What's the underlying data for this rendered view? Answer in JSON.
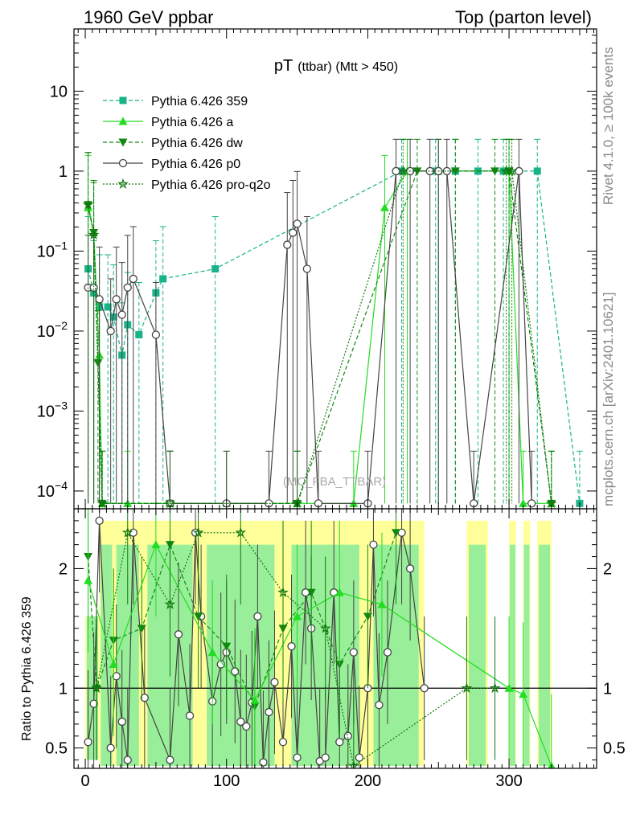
{
  "header": {
    "left": "1960 GeV ppbar",
    "right": "Top (parton level)"
  },
  "side_labels": {
    "rivet": "Rivet 4.1.0, ≥ 100k events",
    "mcplots": "mcplots.cern.ch [arXiv:2401.10621]"
  },
  "watermark": "(MC_FBA_TTBAR)",
  "colors": {
    "p359": "#19b38a",
    "a": "#22dd22",
    "dw": "#118811",
    "p0": "#444444",
    "proq2o": "#117711",
    "band_green": "#99ee99",
    "band_yellow": "#ffff99"
  },
  "chart_data": [
    {
      "type": "line",
      "title": "pT (ttbar) (Mtt > 450)",
      "title_main": "pT",
      "title_sub": "(ttbar) (Mtt > 450)",
      "xlabel": "",
      "ylabel": "",
      "yscale": "log",
      "xlim": [
        -8,
        362
      ],
      "ylim": [
        6e-05,
        60
      ],
      "x_ticks": [
        0,
        100,
        200,
        300
      ],
      "y_ticks": [
        {
          "value": 0.0001,
          "base": "10",
          "exp": "−4"
        },
        {
          "value": 0.001,
          "base": "10",
          "exp": "−3"
        },
        {
          "value": 0.01,
          "base": "10",
          "exp": "−2"
        },
        {
          "value": 0.1,
          "base": "10",
          "exp": "−1"
        },
        {
          "value": 1,
          "base": "1",
          "exp": ""
        },
        {
          "value": 10,
          "base": "10",
          "exp": ""
        }
      ],
      "legend": [
        {
          "key": "p359",
          "label": "Pythia 6.426 359",
          "marker": "square",
          "dash": "dashed"
        },
        {
          "key": "a",
          "label": "Pythia 6.426 a",
          "marker": "triangle-up",
          "dash": "solid"
        },
        {
          "key": "dw",
          "label": "Pythia 6.426 dw",
          "marker": "triangle-down",
          "dash": "dashed"
        },
        {
          "key": "p0",
          "label": "Pythia 6.426 p0",
          "marker": "circle-open",
          "dash": "solid"
        },
        {
          "key": "proq2o",
          "label": "Pythia 6.426 pro-q2o",
          "marker": "star-open",
          "dash": "dotted"
        }
      ],
      "series": [
        {
          "key": "p359",
          "points": [
            [
              2,
              0.06
            ],
            [
              6,
              0.03
            ],
            [
              10,
              0.02
            ],
            [
              16,
              0.02
            ],
            [
              20,
              0.015
            ],
            [
              26,
              0.005
            ],
            [
              30,
              0.012
            ],
            [
              38,
              0.009
            ],
            [
              50,
              0.03
            ],
            [
              55,
              0.045
            ],
            [
              92,
              0.06
            ],
            [
              224,
              1
            ],
            [
              248,
              1
            ],
            [
              262,
              1
            ],
            [
              278,
              1
            ],
            [
              296,
              1
            ],
            [
              320,
              1
            ],
            [
              350,
              7e-05
            ]
          ],
          "err_up": 2.5,
          "err_down": 7e-05
        },
        {
          "key": "a",
          "points": [
            [
              2,
              0.35
            ],
            [
              6,
              0.17
            ],
            [
              10,
              0.005
            ],
            [
              12,
              7e-05
            ],
            [
              30,
              7e-05
            ],
            [
              60,
              7e-05
            ],
            [
              100,
              7e-05
            ],
            [
              150,
              7e-05
            ],
            [
              190,
              7e-05
            ],
            [
              212,
              0.35
            ],
            [
              228,
              1
            ],
            [
              250,
              1
            ],
            [
              300,
              1
            ],
            [
              310,
              7e-05
            ],
            [
              330,
              7e-05
            ]
          ],
          "err_up": 2.5,
          "err_down": 7e-05
        },
        {
          "key": "dw",
          "points": [
            [
              2,
              0.38
            ],
            [
              6,
              0.17
            ],
            [
              9,
              0.004
            ],
            [
              12,
              7e-05
            ],
            [
              60,
              7e-05
            ],
            [
              150,
              7e-05
            ],
            [
              235,
              1
            ],
            [
              262,
              1
            ],
            [
              290,
              1
            ],
            [
              300,
              1
            ],
            [
              330,
              7e-05
            ]
          ],
          "err_up": 2.5,
          "err_down": 7e-05
        },
        {
          "key": "p0",
          "points": [
            [
              2,
              0.035
            ],
            [
              6,
              0.035
            ],
            [
              10,
              0.025
            ],
            [
              18,
              0.01
            ],
            [
              22,
              0.025
            ],
            [
              26,
              0.016
            ],
            [
              30,
              0.035
            ],
            [
              34,
              0.045
            ],
            [
              50,
              0.009
            ],
            [
              60,
              7e-05
            ],
            [
              100,
              7e-05
            ],
            [
              130,
              7e-05
            ],
            [
              143,
              0.12
            ],
            [
              147,
              0.17
            ],
            [
              150,
              0.22
            ],
            [
              157,
              0.06
            ],
            [
              165,
              7e-05
            ],
            [
              200,
              7e-05
            ],
            [
              220,
              1
            ],
            [
              230,
              1
            ],
            [
              244,
              1
            ],
            [
              250,
              1
            ],
            [
              256,
              1
            ],
            [
              275,
              7e-05
            ],
            [
              307,
              1
            ],
            [
              316,
              7e-05
            ]
          ],
          "err_up": 2.5,
          "err_down": 7e-05
        },
        {
          "key": "proq2o",
          "points": [
            [
              2,
              0.38
            ],
            [
              6,
              0.16
            ],
            [
              12,
              7e-05
            ],
            [
              60,
              7e-05
            ],
            [
              150,
              7e-05
            ],
            [
              225,
              1
            ],
            [
              298,
              1
            ],
            [
              302,
              1
            ],
            [
              330,
              7e-05
            ]
          ],
          "err_up": 2.5,
          "err_down": 7e-05
        }
      ]
    },
    {
      "type": "line",
      "title": "",
      "xlabel": "",
      "ylabel": "Ratio to Pythia 6.426 359",
      "xlim": [
        -8,
        362
      ],
      "ylim": [
        0.33,
        2.5
      ],
      "x_ticks": [
        0,
        100,
        200,
        300
      ],
      "y_ticks": [
        0.5,
        1,
        2
      ],
      "reference_line": 1,
      "bands": [
        [
          0,
          10,
          0.4,
          1.6
        ],
        [
          10,
          20,
          0.35,
          2.4
        ],
        [
          20,
          40,
          0.35,
          2.4
        ],
        [
          40,
          80,
          0.35,
          2.4
        ],
        [
          80,
          140,
          0.35,
          2.4
        ],
        [
          140,
          200,
          0.35,
          2.4
        ],
        [
          200,
          240,
          0.35,
          2.4
        ],
        [
          270,
          285,
          0.35,
          2.4
        ],
        [
          300,
          305,
          0.35,
          2.4
        ],
        [
          310,
          315,
          0.35,
          2.4
        ],
        [
          320,
          330,
          0.35,
          2.4
        ]
      ],
      "series": [
        {
          "key": "p0",
          "points": [
            [
              2,
              0.55
            ],
            [
              6,
              0.87
            ],
            [
              10,
              2.4
            ],
            [
              18,
              0.5
            ],
            [
              22,
              1.1
            ],
            [
              26,
              0.72
            ],
            [
              30,
              0.4
            ],
            [
              34,
              2.3
            ],
            [
              42,
              0.92
            ],
            [
              60,
              0.4
            ],
            [
              66,
              1.45
            ],
            [
              74,
              0.77
            ],
            [
              78,
              2.3
            ],
            [
              82,
              1.6
            ],
            [
              90,
              0.89
            ],
            [
              96,
              1.2
            ],
            [
              100,
              1.3
            ],
            [
              106,
              1.14
            ],
            [
              110,
              0.72
            ],
            [
              114,
              0.68
            ],
            [
              118,
              0.88
            ],
            [
              122,
              1.6
            ],
            [
              126,
              0.38
            ],
            [
              130,
              0.8
            ],
            [
              134,
              1.05
            ],
            [
              140,
              0.55
            ],
            [
              146,
              1.35
            ],
            [
              150,
              0.42
            ],
            [
              156,
              1.8
            ],
            [
              160,
              1.5
            ],
            [
              166,
              0.39
            ],
            [
              170,
              0.42
            ],
            [
              176,
              1.8
            ],
            [
              180,
              0.55
            ],
            [
              186,
              0.6
            ],
            [
              190,
              1.3
            ],
            [
              194,
              0.42
            ],
            [
              200,
              1.0
            ],
            [
              204,
              2.2
            ],
            [
              208,
              0.86
            ],
            [
              214,
              1.3
            ],
            [
              224,
              2.3
            ],
            [
              230,
              2.0
            ],
            [
              240,
              1.0
            ]
          ]
        },
        {
          "key": "dw",
          "points": [
            [
              2,
              2.1
            ],
            [
              8,
              1.0
            ],
            [
              20,
              1.4
            ],
            [
              40,
              1.5
            ],
            [
              60,
              2.2
            ],
            [
              80,
              1.6
            ],
            [
              100,
              1.35
            ],
            [
              120,
              0.85
            ],
            [
              140,
              1.5
            ],
            [
              160,
              1.8
            ],
            [
              180,
              1.2
            ],
            [
              200,
              1.6
            ],
            [
              220,
              2.3
            ]
          ]
        },
        {
          "key": "a",
          "points": [
            [
              2,
              1.9
            ],
            [
              20,
              1.2
            ],
            [
              50,
              2.2
            ],
            [
              90,
              1.3
            ],
            [
              120,
              0.9
            ],
            [
              150,
              1.6
            ],
            [
              180,
              1.8
            ],
            [
              210,
              1.7
            ],
            [
              300,
              1.0
            ],
            [
              310,
              0.95
            ],
            [
              330,
              0.35
            ]
          ]
        },
        {
          "key": "proq2o",
          "points": [
            [
              8,
              1.0
            ],
            [
              30,
              2.3
            ],
            [
              60,
              1.7
            ],
            [
              80,
              2.3
            ],
            [
              110,
              2.3
            ],
            [
              140,
              1.8
            ],
            [
              170,
              1.5
            ],
            [
              190,
              0.35
            ],
            [
              270,
              1.0
            ],
            [
              290,
              1.0
            ]
          ]
        }
      ]
    }
  ]
}
